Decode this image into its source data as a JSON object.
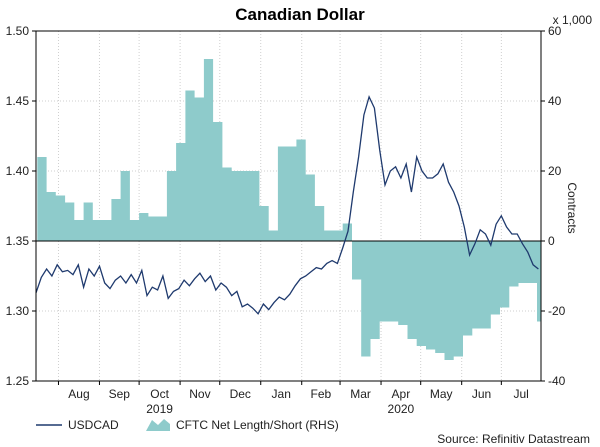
{
  "chart_data": {
    "type": "line",
    "title": "Canadian Dollar",
    "source": "Source: Refinitiv Datastream",
    "right_axis_multiplier": "x 1,000",
    "left_ylim": [
      1.25,
      1.5
    ],
    "right_ylim": [
      -40,
      60
    ],
    "left_ticks": [
      "1.50",
      "1.45",
      "1.40",
      "1.35",
      "1.30",
      "1.25"
    ],
    "right_ticks": [
      "60",
      "40",
      "20",
      "0",
      "-20",
      "-40"
    ],
    "right_axis_label": "Contracts",
    "x_range": [
      "2019-07-15",
      "2020-07-31"
    ],
    "month_ticks": [
      "Aug",
      "Sep",
      "Oct",
      "Nov",
      "Dec",
      "Jan",
      "Feb",
      "Mar",
      "Apr",
      "May",
      "Jun",
      "Jul"
    ],
    "year_labels": [
      "2019",
      "2020"
    ],
    "grid": true,
    "legend_position": "bottom",
    "series": [
      {
        "name": "USDCAD",
        "type": "line",
        "axis": "left",
        "color": "#1f3a6e",
        "x": [
          "2019-07-15",
          "2019-07-19",
          "2019-07-23",
          "2019-07-27",
          "2019-07-31",
          "2019-08-04",
          "2019-08-08",
          "2019-08-12",
          "2019-08-16",
          "2019-08-20",
          "2019-08-24",
          "2019-08-28",
          "2019-09-01",
          "2019-09-05",
          "2019-09-09",
          "2019-09-13",
          "2019-09-17",
          "2019-09-21",
          "2019-09-25",
          "2019-09-29",
          "2019-10-03",
          "2019-10-07",
          "2019-10-11",
          "2019-10-15",
          "2019-10-19",
          "2019-10-23",
          "2019-10-27",
          "2019-10-31",
          "2019-11-04",
          "2019-11-08",
          "2019-11-12",
          "2019-11-16",
          "2019-11-20",
          "2019-11-24",
          "2019-11-28",
          "2019-12-02",
          "2019-12-06",
          "2019-12-10",
          "2019-12-14",
          "2019-12-18",
          "2019-12-22",
          "2019-12-26",
          "2019-12-30",
          "2020-01-03",
          "2020-01-07",
          "2020-01-11",
          "2020-01-15",
          "2020-01-19",
          "2020-01-23",
          "2020-01-27",
          "2020-01-31",
          "2020-02-04",
          "2020-02-08",
          "2020-02-12",
          "2020-02-16",
          "2020-02-20",
          "2020-02-24",
          "2020-02-28",
          "2020-03-03",
          "2020-03-07",
          "2020-03-11",
          "2020-03-15",
          "2020-03-19",
          "2020-03-23",
          "2020-03-27",
          "2020-03-31",
          "2020-04-04",
          "2020-04-08",
          "2020-04-12",
          "2020-04-16",
          "2020-04-20",
          "2020-04-24",
          "2020-04-28",
          "2020-05-02",
          "2020-05-06",
          "2020-05-10",
          "2020-05-14",
          "2020-05-18",
          "2020-05-22",
          "2020-05-26",
          "2020-05-30",
          "2020-06-03",
          "2020-06-07",
          "2020-06-11",
          "2020-06-15",
          "2020-06-19",
          "2020-06-23",
          "2020-06-27",
          "2020-07-01",
          "2020-07-05",
          "2020-07-09",
          "2020-07-13",
          "2020-07-17",
          "2020-07-21",
          "2020-07-25",
          "2020-07-29"
        ],
        "values": [
          1.313,
          1.324,
          1.33,
          1.325,
          1.333,
          1.328,
          1.329,
          1.326,
          1.333,
          1.317,
          1.33,
          1.325,
          1.332,
          1.32,
          1.316,
          1.322,
          1.325,
          1.32,
          1.326,
          1.32,
          1.329,
          1.311,
          1.317,
          1.315,
          1.325,
          1.309,
          1.314,
          1.316,
          1.322,
          1.318,
          1.323,
          1.327,
          1.321,
          1.325,
          1.315,
          1.32,
          1.317,
          1.311,
          1.314,
          1.303,
          1.305,
          1.302,
          1.298,
          1.305,
          1.301,
          1.306,
          1.31,
          1.308,
          1.312,
          1.318,
          1.323,
          1.325,
          1.328,
          1.331,
          1.33,
          1.334,
          1.336,
          1.334,
          1.345,
          1.357,
          1.385,
          1.41,
          1.44,
          1.453,
          1.445,
          1.415,
          1.39,
          1.4,
          1.403,
          1.395,
          1.405,
          1.385,
          1.41,
          1.4,
          1.395,
          1.395,
          1.398,
          1.405,
          1.392,
          1.385,
          1.375,
          1.36,
          1.34,
          1.348,
          1.358,
          1.355,
          1.347,
          1.362,
          1.368,
          1.36,
          1.355,
          1.355,
          1.348,
          1.342,
          1.333,
          1.33
        ]
      },
      {
        "name": "CFTC Net Length/Short (RHS)",
        "type": "area",
        "axis": "right",
        "color": "#8ecbcb",
        "x": [
          "2019-07-16",
          "2019-07-23",
          "2019-07-30",
          "2019-08-06",
          "2019-08-13",
          "2019-08-20",
          "2019-08-27",
          "2019-09-03",
          "2019-09-10",
          "2019-09-17",
          "2019-09-24",
          "2019-10-01",
          "2019-10-08",
          "2019-10-15",
          "2019-10-22",
          "2019-10-29",
          "2019-11-05",
          "2019-11-12",
          "2019-11-19",
          "2019-11-26",
          "2019-12-03",
          "2019-12-10",
          "2019-12-17",
          "2019-12-24",
          "2019-12-31",
          "2020-01-07",
          "2020-01-14",
          "2020-01-21",
          "2020-01-28",
          "2020-02-04",
          "2020-02-11",
          "2020-02-18",
          "2020-02-25",
          "2020-03-03",
          "2020-03-10",
          "2020-03-17",
          "2020-03-24",
          "2020-03-31",
          "2020-04-07",
          "2020-04-14",
          "2020-04-21",
          "2020-04-28",
          "2020-05-05",
          "2020-05-12",
          "2020-05-19",
          "2020-05-26",
          "2020-06-02",
          "2020-06-09",
          "2020-06-16",
          "2020-06-23",
          "2020-06-30",
          "2020-07-07",
          "2020-07-14",
          "2020-07-21",
          "2020-07-28"
        ],
        "values": [
          24,
          14,
          13,
          11,
          6,
          11,
          6,
          6,
          12,
          20,
          6,
          8,
          7,
          7,
          20,
          28,
          43,
          41,
          52,
          34,
          21,
          20,
          20,
          20,
          10,
          3,
          27,
          27,
          29,
          19,
          10,
          3,
          3,
          5,
          -11,
          -33,
          -28,
          -23,
          -23,
          -24,
          -28,
          -30,
          -31,
          -32,
          -34,
          -33,
          -27,
          -25,
          -25,
          -21,
          -19,
          -13,
          -12,
          -12,
          -23
        ]
      }
    ]
  }
}
